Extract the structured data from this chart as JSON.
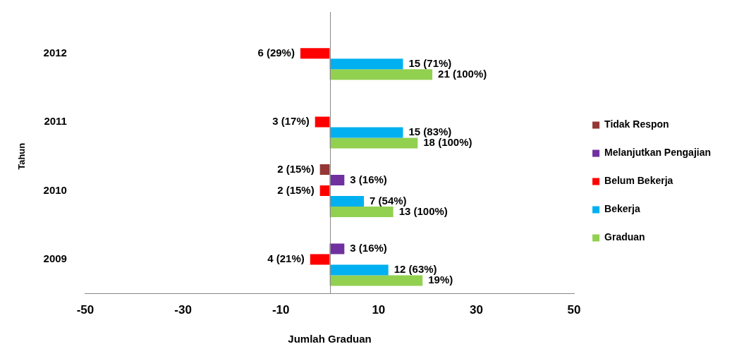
{
  "chart_data": {
    "type": "bar",
    "orientation": "horizontal",
    "xlabel": "Jumlah Graduan",
    "ylabel": "Tahun",
    "categories": [
      "2012",
      "2011",
      "2010",
      "2009"
    ],
    "xlim": [
      -50,
      50
    ],
    "xticks": [
      -50,
      -30,
      -10,
      10,
      30,
      50
    ],
    "legend": "right",
    "series": [
      {
        "name": "Tidak Respon",
        "color": "#953735",
        "values": [
          null,
          null,
          2,
          null
        ],
        "base": [
          null,
          null,
          -2,
          null
        ],
        "value_labels": [
          null,
          null,
          "2 (15%)",
          null
        ]
      },
      {
        "name": "Melanjutkan Pengajian",
        "color": "#7030a0",
        "values": [
          null,
          null,
          3,
          3
        ],
        "value_labels": [
          null,
          null,
          "3 (16%)",
          "3 (16%)"
        ]
      },
      {
        "name": "Belum Bekerja",
        "color": "#ff0000",
        "values": [
          6,
          3,
          2,
          4
        ],
        "base": [
          -6,
          -3,
          -2,
          -4
        ],
        "value_labels": [
          "6 (29%)",
          "3 (17%)",
          "2 (15%)",
          "4 (21%)"
        ]
      },
      {
        "name": "Bekerja",
        "color": "#00b0f0",
        "values": [
          15,
          15,
          7,
          12
        ],
        "value_labels": [
          "15 (71%)",
          "15 (83%)",
          "7 (54%)",
          "12 (63%)"
        ]
      },
      {
        "name": "Graduan",
        "color": "#92d050",
        "values": [
          21,
          18,
          13,
          19
        ],
        "value_labels": [
          "21 (100%)",
          "18 (100%)",
          "13 (100%)",
          "19%)"
        ]
      }
    ]
  }
}
